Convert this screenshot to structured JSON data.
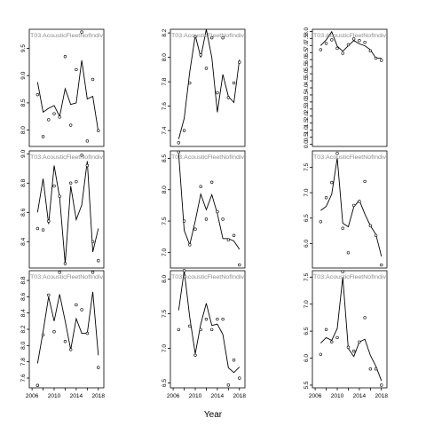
{
  "figure": {
    "xlabel": "Year"
  },
  "chart_data": [
    {
      "type": "line",
      "title": "T03:AcousticFleetNofIndiv",
      "xlim": [
        2005.5,
        2019
      ],
      "ylim": [
        7.7,
        9.85
      ],
      "yticks": [
        8.0,
        8.5,
        9.0,
        9.5
      ],
      "x": [
        2007,
        2008,
        2009,
        2010,
        2011,
        2012,
        2013,
        2014,
        2015,
        2016,
        2017,
        2018
      ],
      "line": [
        8.88,
        8.33,
        8.4,
        8.45,
        8.25,
        8.76,
        8.47,
        8.5,
        9.28,
        8.57,
        8.62,
        7.97
      ],
      "points": [
        8.65,
        7.88,
        8.19,
        8.3,
        8.24,
        9.35,
        8.09,
        9.11,
        9.8,
        7.8,
        8.93,
        7.99
      ]
    },
    {
      "type": "line",
      "title": "T03:AcousticFleetNofIndiv",
      "xlim": [
        2005.5,
        2019
      ],
      "ylim": [
        7.27,
        8.23
      ],
      "yticks": [
        7.4,
        7.6,
        7.8,
        8.0,
        8.2
      ],
      "x": [
        2007,
        2008,
        2009,
        2010,
        2011,
        2012,
        2013,
        2014,
        2015,
        2016,
        2017,
        2018
      ],
      "line": [
        7.33,
        7.5,
        7.88,
        8.18,
        8.0,
        8.23,
        8.0,
        7.55,
        7.86,
        7.68,
        7.63,
        7.98
      ],
      "points": [
        7.3,
        7.4,
        7.79,
        8.17,
        8.02,
        7.91,
        8.16,
        7.71,
        8.16,
        7.67,
        7.79,
        7.96
      ]
    },
    {
      "type": "line",
      "title": "T03:AcousticFleetNofIndiv",
      "xlim": [
        2005.5,
        2019
      ],
      "ylim": [
        -0.15,
        8.15
      ],
      "yticks": [
        0.0,
        0.5,
        1.0,
        1.5,
        2.0,
        2.5,
        3.0,
        3.5,
        4.0,
        4.5,
        5.0,
        5.5,
        6.0,
        6.5,
        7.0,
        7.5,
        8.0
      ],
      "x": [
        2007,
        2008,
        2009,
        2010,
        2011,
        2012,
        2013,
        2014,
        2015,
        2016,
        2017,
        2018
      ],
      "line": [
        7.0,
        7.4,
        7.98,
        6.95,
        6.6,
        6.98,
        7.35,
        7.12,
        6.98,
        6.7,
        6.1,
        6.1
      ],
      "points": [
        6.7,
        7.15,
        7.4,
        6.8,
        6.45,
        7.05,
        7.47,
        7.35,
        7.22,
        6.62,
        6.1,
        5.95
      ]
    },
    {
      "type": "line",
      "title": "T03:AcousticFleetNofIndiv",
      "xlim": [
        2005.5,
        2019
      ],
      "ylim": [
        8.22,
        9.02
      ],
      "yticks": [
        8.4,
        8.6,
        8.8,
        9.0
      ],
      "x": [
        2007,
        2008,
        2009,
        2010,
        2011,
        2012,
        2013,
        2014,
        2015,
        2016,
        2017,
        2018
      ],
      "line": [
        8.6,
        8.83,
        8.52,
        8.92,
        8.7,
        8.25,
        8.78,
        8.55,
        8.65,
        8.95,
        8.33,
        8.49
      ],
      "points": [
        8.49,
        8.48,
        8.54,
        8.78,
        8.71,
        8.25,
        8.8,
        8.81,
        8.99,
        8.92,
        8.4,
        8.27
      ]
    },
    {
      "type": "line",
      "title": "T03:AcousticFleetNofIndiv",
      "xlim": [
        2005.5,
        2019
      ],
      "ylim": [
        6.75,
        8.62
      ],
      "yticks": [
        7.0,
        7.5,
        8.0,
        8.5
      ],
      "x": [
        2007,
        2008,
        2009,
        2010,
        2011,
        2012,
        2013,
        2014,
        2015,
        2016,
        2017,
        2018
      ],
      "line": [
        8.57,
        7.35,
        7.12,
        7.5,
        7.93,
        7.68,
        7.92,
        7.62,
        7.22,
        7.22,
        7.18,
        7.05
      ],
      "points": [
        8.6,
        7.5,
        7.12,
        7.37,
        8.05,
        7.53,
        8.12,
        7.65,
        7.53,
        7.2,
        7.27,
        6.8
      ]
    },
    {
      "type": "line",
      "title": "T03:AcousticFleetNofIndiv",
      "xlim": [
        2005.5,
        2019
      ],
      "ylim": [
        5.52,
        7.82
      ],
      "yticks": [
        6.0,
        6.5,
        7.0,
        7.5
      ],
      "x": [
        2007,
        2008,
        2009,
        2010,
        2011,
        2012,
        2013,
        2014,
        2015,
        2016,
        2017,
        2018
      ],
      "line": [
        6.65,
        6.73,
        6.97,
        7.68,
        6.4,
        6.33,
        6.72,
        6.85,
        6.58,
        6.35,
        6.18,
        5.75
      ],
      "points": [
        6.43,
        6.9,
        7.2,
        7.77,
        6.3,
        5.82,
        6.75,
        6.83,
        7.22,
        6.35,
        6.16,
        5.58
      ]
    },
    {
      "type": "line",
      "title": "T03:AcousticFleetNofIndiv",
      "xlim": [
        2005.5,
        2019
      ],
      "ylim": [
        7.48,
        8.92
      ],
      "yticks": [
        7.6,
        7.8,
        8.0,
        8.2,
        8.4,
        8.6,
        8.8
      ],
      "x": [
        2007,
        2008,
        2009,
        2010,
        2011,
        2012,
        2013,
        2014,
        2015,
        2016,
        2017,
        2018
      ],
      "line": [
        7.78,
        8.17,
        8.6,
        8.3,
        8.63,
        8.3,
        7.95,
        8.33,
        8.15,
        8.15,
        8.66,
        7.88
      ],
      "points": [
        7.51,
        8.13,
        8.62,
        8.17,
        8.9,
        8.05,
        7.95,
        8.5,
        8.44,
        8.15,
        8.9,
        7.73
      ]
    },
    {
      "type": "line",
      "title": "T03:AcousticFleetNofIndiv",
      "xlim": [
        2005.5,
        2019
      ],
      "ylim": [
        6.43,
        8.12
      ],
      "yticks": [
        6.5,
        7.0,
        7.5,
        8.0
      ],
      "x": [
        2007,
        2008,
        2009,
        2010,
        2011,
        2012,
        2013,
        2014,
        2015,
        2016,
        2017,
        2018
      ],
      "line": [
        7.55,
        8.12,
        7.45,
        6.92,
        7.35,
        7.65,
        7.33,
        7.35,
        7.2,
        6.72,
        6.65,
        6.73
      ],
      "points": [
        7.27,
        8.12,
        7.32,
        6.9,
        7.27,
        7.42,
        7.27,
        7.42,
        7.42,
        6.47,
        6.83,
        6.57
      ]
    },
    {
      "type": "line",
      "title": "T03:AcousticFleetNofIndiv",
      "xlim": [
        2005.5,
        2019
      ],
      "ylim": [
        5.45,
        7.62
      ],
      "yticks": [
        5.5,
        6.0,
        6.5,
        7.0,
        7.5
      ],
      "x": [
        2007,
        2008,
        2009,
        2010,
        2011,
        2012,
        2013,
        2014,
        2015,
        2016,
        2017,
        2018
      ],
      "line": [
        6.28,
        6.38,
        6.33,
        6.55,
        7.5,
        6.18,
        6.03,
        6.3,
        6.35,
        6.05,
        5.85,
        5.58
      ],
      "points": [
        6.07,
        6.53,
        6.3,
        6.38,
        7.6,
        6.2,
        6.13,
        6.3,
        6.75,
        5.8,
        5.8,
        5.5
      ]
    }
  ],
  "xticks": [
    "2006",
    "2010",
    "2014",
    "2018"
  ]
}
